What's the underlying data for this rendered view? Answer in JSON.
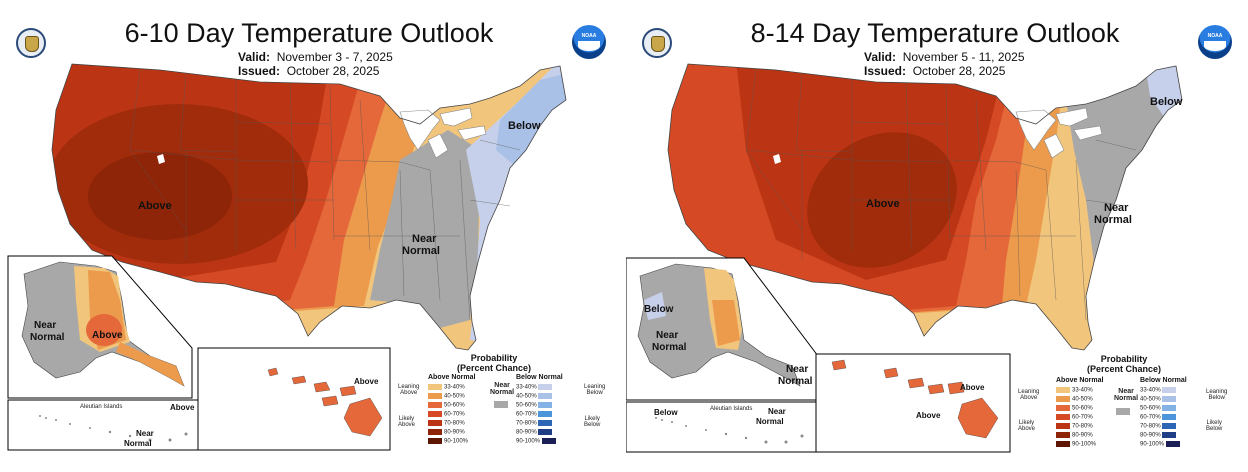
{
  "colors": {
    "above_33_40": "#f2c57c",
    "above_40_50": "#ec9b4c",
    "above_50_60": "#e4683a",
    "above_60_70": "#d54a24",
    "above_70_80": "#bb3514",
    "above_80_90": "#8e2508",
    "above_90_100": "#5c1603",
    "below_33_40": "#c7d0ea",
    "below_40_50": "#a9c1e6",
    "below_50_60": "#85b2e5",
    "below_60_70": "#4d95db",
    "below_70_80": "#2d66b5",
    "below_80_90": "#1f3e85",
    "below_90_100": "#1b1f55",
    "near_normal": "#a8a8a8"
  },
  "panels": [
    {
      "title": "6-10 Day Temperature Outlook",
      "valid_label": "Valid:",
      "valid_value": "November 3 - 7, 2025",
      "issued_label": "Issued:",
      "issued_value": "October 28, 2025",
      "icons": [
        "doc-seal-icon",
        "noaa-logo-icon"
      ],
      "region_labels": {
        "conus_above": "Above",
        "conus_below": "Below",
        "conus_near_1": "Near",
        "conus_near_2": "Normal",
        "alaska_near_1": "Near",
        "alaska_near_2": "Normal",
        "alaska_above": "Above",
        "aleutian_title": "Aleutian Islands",
        "aleutian_above": "Above",
        "aleutian_near_1": "Near",
        "aleutian_near_2": "Normal",
        "hawaii_above": "Above"
      }
    },
    {
      "title": "8-14 Day Temperature Outlook",
      "valid_label": "Valid:",
      "valid_value": "November 5 - 11, 2025",
      "issued_label": "Issued:",
      "issued_value": "October 28, 2025",
      "icons": [
        "doc-seal-icon",
        "noaa-logo-icon"
      ],
      "region_labels": {
        "conus_above": "Above",
        "conus_below": "Below",
        "conus_near_1": "Near",
        "conus_near_2": "Normal",
        "alaska_below": "Below",
        "alaska_near_1": "Near",
        "alaska_near_2": "Normal",
        "alaska_near_b1": "Near",
        "alaska_near_b2": "Normal",
        "aleutian_title": "Aleutian Islands",
        "aleutian_below": "Below",
        "aleutian_near_1": "Near",
        "aleutian_near_2": "Normal",
        "hawaii_above_1": "Above",
        "hawaii_above_2": "Above"
      }
    }
  ],
  "legend": {
    "title_1": "Probability",
    "title_2": "(Percent Chance)",
    "above_header": "Above Normal",
    "below_header": "Below Normal",
    "near_1": "Near",
    "near_2": "Normal",
    "leaning_above_1": "Leaning",
    "leaning_above_2": "Above",
    "likely_above_1": "Likely",
    "likely_above_2": "Above",
    "leaning_below_1": "Leaning",
    "leaning_below_2": "Below",
    "likely_below_1": "Likely",
    "likely_below_2": "Below",
    "ranges": [
      "33-40%",
      "40-50%",
      "50-60%",
      "60-70%",
      "70-80%",
      "80-90%",
      "90-100%"
    ]
  }
}
